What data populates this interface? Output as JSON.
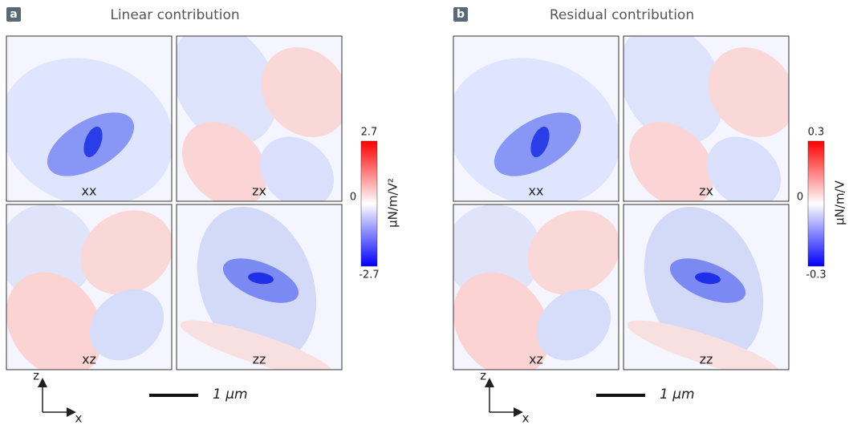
{
  "panels": [
    {
      "letter": "a",
      "title": "Linear contribution",
      "maps": [
        "xx",
        "zx",
        "xz",
        "zz"
      ],
      "colorbar": {
        "top": "2.7",
        "middle": "0",
        "bottom": "-2.7",
        "unit": "μN/m/V²"
      },
      "scale_bar": "1 μm",
      "axes": {
        "vertical": "z",
        "horizontal": "x"
      }
    },
    {
      "letter": "b",
      "title": "Residual contribution",
      "maps": [
        "xx",
        "zx",
        "xz",
        "zz"
      ],
      "colorbar": {
        "top": "0.3",
        "middle": "0",
        "bottom": "-0.3",
        "unit": "μN/m/V"
      },
      "scale_bar": "1 μm",
      "axes": {
        "vertical": "z",
        "horizontal": "x"
      }
    }
  ]
}
